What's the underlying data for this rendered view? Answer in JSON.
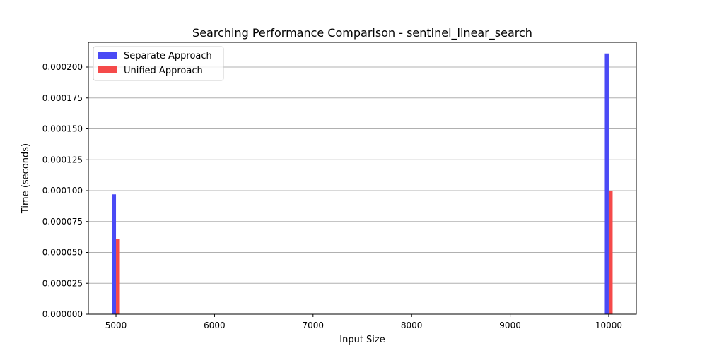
{
  "chart_data": {
    "type": "bar",
    "title": "Searching Performance Comparison - sentinel_linear_search",
    "xlabel": "Input Size",
    "ylabel": "Time (seconds)",
    "x": [
      5000,
      10000
    ],
    "series": [
      {
        "name": "Separate Approach",
        "values": [
          9.7e-05,
          0.000211
        ],
        "color": "#4a4af5"
      },
      {
        "name": "Unified Approach",
        "values": [
          6.1e-05,
          0.0001
        ],
        "color": "#f54a4a"
      }
    ],
    "xlim": [
      4720,
      10280
    ],
    "ylim": [
      0,
      0.00022
    ],
    "xticks": [
      5000,
      6000,
      7000,
      8000,
      9000,
      10000
    ],
    "xtick_labels": [
      "5000",
      "6000",
      "7000",
      "8000",
      "9000",
      "10000"
    ],
    "yticks": [
      0,
      2.5e-05,
      5e-05,
      7.5e-05,
      0.0001,
      0.000125,
      0.00015,
      0.000175,
      0.0002
    ],
    "ytick_labels": [
      "0.000000",
      "0.000025",
      "0.000050",
      "0.000075",
      "0.000100",
      "0.000125",
      "0.000150",
      "0.000175",
      "0.000200"
    ],
    "bar_width": 40,
    "grid": {
      "y": true,
      "x": false
    },
    "legend_position": "top-left",
    "colors": {
      "grid": "#b0b0b0",
      "axes": "#000000"
    }
  }
}
